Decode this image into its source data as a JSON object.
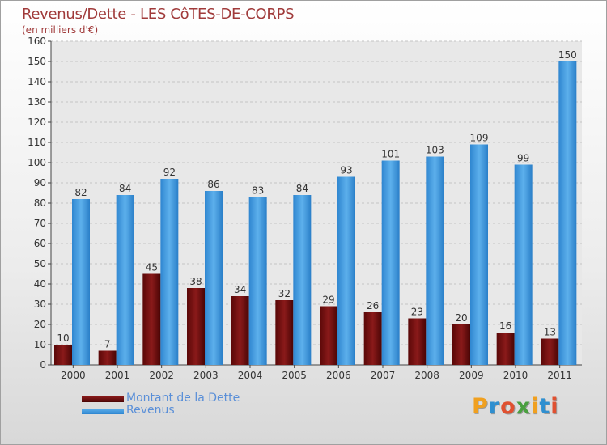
{
  "chart_data": {
    "type": "bar",
    "title": "Revenus/Dette - LES CôTES-DE-CORPS",
    "subtitle": "(en milliers d'€)",
    "categories": [
      "2000",
      "2001",
      "2002",
      "2003",
      "2004",
      "2005",
      "2006",
      "2007",
      "2008",
      "2009",
      "2010",
      "2011"
    ],
    "series": [
      {
        "name": "Montant de la Dette",
        "color": "#7a0f0f",
        "values": [
          10,
          7,
          45,
          38,
          34,
          32,
          29,
          26,
          23,
          20,
          16,
          13
        ]
      },
      {
        "name": "Revenus",
        "color": "#3f95dc",
        "values": [
          82,
          84,
          92,
          86,
          83,
          84,
          93,
          101,
          103,
          109,
          99,
          150
        ]
      }
    ],
    "ylim": [
      0,
      160
    ],
    "yticks": [
      0,
      10,
      20,
      30,
      40,
      50,
      60,
      70,
      80,
      90,
      100,
      110,
      120,
      130,
      140,
      150,
      160
    ],
    "grid": true,
    "legend_position": "bottom-left",
    "xlabel": "",
    "ylabel": ""
  },
  "branding": {
    "logo_letters": [
      "P",
      "r",
      "o",
      "x",
      "i",
      "t",
      "i"
    ],
    "logo_colors": [
      "#f0a020",
      "#2f8fd0",
      "#e05030",
      "#4aa040",
      "#f0a020",
      "#2f8fd0",
      "#e05030"
    ]
  }
}
